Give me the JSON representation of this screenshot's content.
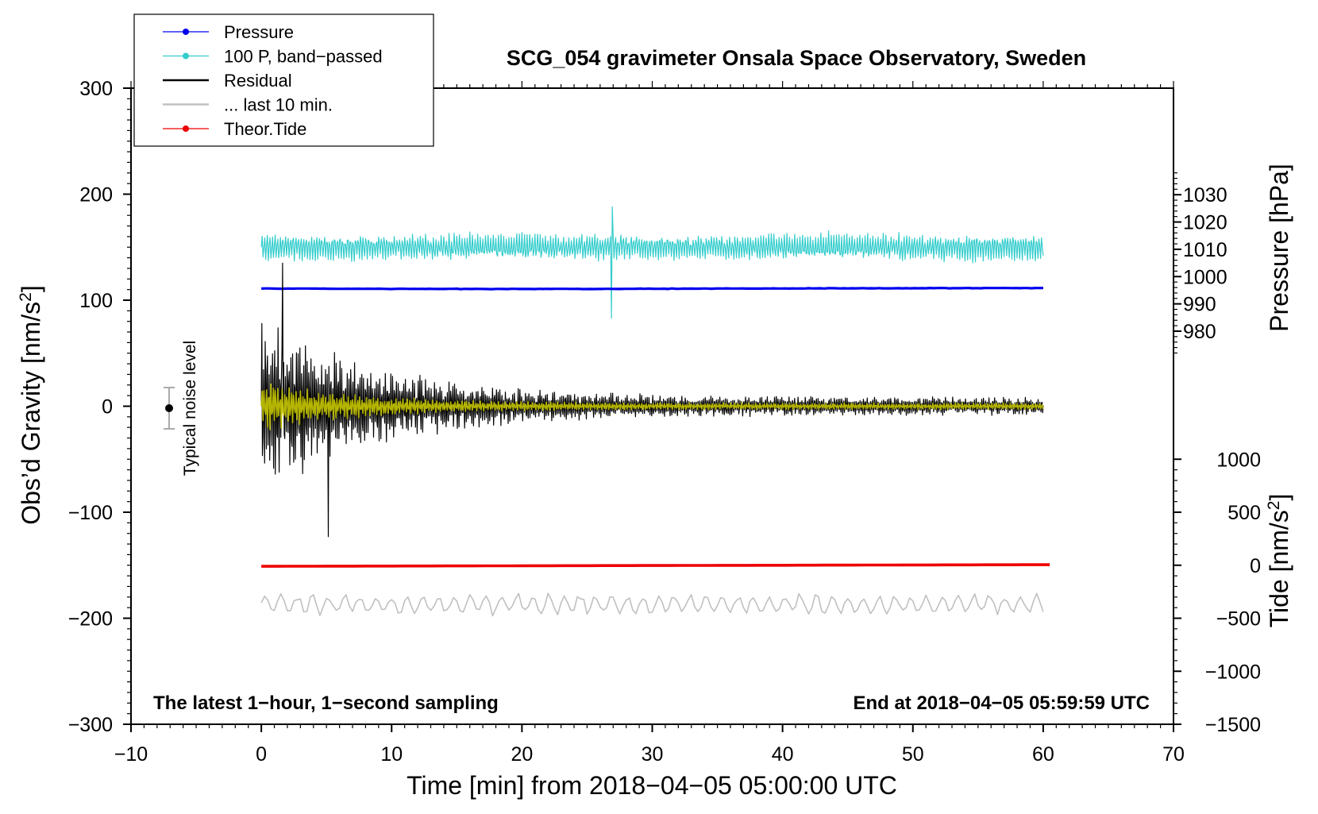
{
  "chart_data": {
    "type": "line",
    "title": "SCG_054 gravimeter Onsala Space Observatory, Sweden",
    "xlabel": "Time [min] from 2018−04−05 05:00:00 UTC",
    "ylabel": "Obs’d Gravity [nm/s²]",
    "y2label_pressure": "Pressure [hPa]",
    "y2label_tide": "Tide [nm/s²]",
    "xlim": [
      -10,
      70
    ],
    "ylim": [
      -300,
      300
    ],
    "xticks": [
      -10,
      0,
      10,
      20,
      30,
      40,
      50,
      60,
      70
    ],
    "xtick_labels": [
      "−10",
      "0",
      "10",
      "20",
      "30",
      "40",
      "50",
      "60",
      "70"
    ],
    "yticks": [
      -300,
      -200,
      -100,
      0,
      100,
      200,
      300
    ],
    "ytick_labels": [
      "−300",
      "−200",
      "−100",
      "0",
      "100",
      "200",
      "300"
    ],
    "pressure_axis": {
      "ticks": [
        980,
        990,
        1000,
        1010,
        1020,
        1030
      ],
      "tick_labels": [
        "980",
        "990",
        "1000",
        "1010",
        "1020",
        "1030"
      ],
      "hpa_at_gravity_0": 952.5,
      "hpa_per_nm_s2": 0.3885
    },
    "tide_axis": {
      "ticks": [
        -1500,
        -1000,
        -500,
        0,
        500,
        1000
      ],
      "tick_labels": [
        "−1500",
        "−1000",
        "−500",
        "0",
        "500",
        "1000"
      ],
      "tide_per_nm_s2": 10,
      "tide_0_at_gravity": -150
    },
    "notes": {
      "left": "The latest 1−hour, 1−second sampling",
      "right": "End at 2018−04−05 05:59:59 UTC",
      "noise_label": "Typical noise level"
    },
    "noise_level": {
      "x": -7,
      "center": 0,
      "half_range": 20
    },
    "legend": [
      {
        "label": "Pressure",
        "color": "#0000ee",
        "marker": true
      },
      {
        "label": "100 P, band−passed",
        "color": "#33cccc",
        "marker": true
      },
      {
        "label": "Residual",
        "color": "#000000",
        "marker": false
      },
      {
        "label": "... last 10 min.",
        "color": "#c0c0c0",
        "marker": false
      },
      {
        "label": "Theor.Tide",
        "color": "#ee0000",
        "marker": true
      }
    ],
    "series": [
      {
        "name": "Pressure",
        "color": "#0000ee",
        "x_range": [
          0,
          60
        ],
        "value_hpa": 994.0,
        "level_nm_s2": 111
      },
      {
        "name": "100 P, band−passed",
        "color": "#33cccc",
        "x_range": [
          0,
          60
        ],
        "center_nm_s2": 150,
        "amplitude_nm_s2": 12,
        "min_nm_s2": 83,
        "max_nm_s2": 188
      },
      {
        "name": "Residual",
        "color": "#000000",
        "x_range": [
          0,
          60
        ],
        "center_nm_s2": 0,
        "max_nm_s2": 135,
        "min_nm_s2": -123,
        "early_amplitude_nm_s2": 80,
        "late_amplitude_nm_s2": 8
      },
      {
        "name": "Residual (filtered)",
        "color": "#c8c800",
        "x_range": [
          0,
          60
        ],
        "center_nm_s2": 0,
        "early_amplitude_nm_s2": 25,
        "late_amplitude_nm_s2": 3
      },
      {
        "name": "... last 10 min.",
        "color": "#c0c0c0",
        "x_range": [
          0,
          60
        ],
        "center_nm_s2": -187,
        "amplitude_nm_s2": 9
      },
      {
        "name": "Theor.Tide",
        "color": "#ee0000",
        "x_range": [
          0,
          60.5
        ],
        "start_nm_s2": -151,
        "end_nm_s2": -149.5
      }
    ]
  }
}
